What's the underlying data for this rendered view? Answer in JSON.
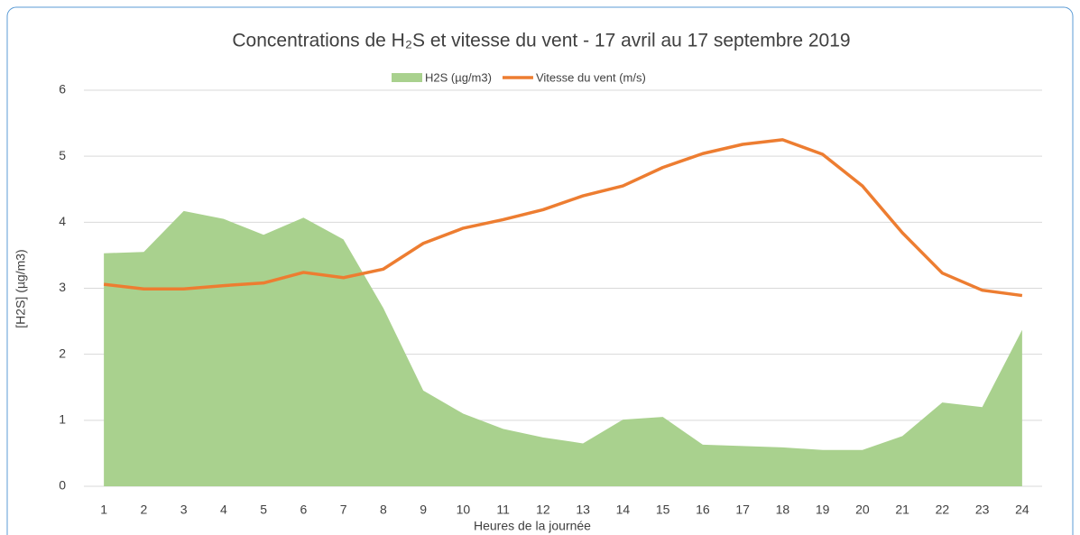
{
  "chart_data": {
    "type": "combo",
    "title": "Concentrations de H₂S et vitesse du vent - 17 avril au 17 septembre 2019",
    "x_label": "Heures de la journée",
    "y_label": "[H2S] (µg/m3)",
    "categories": [
      "1",
      "2",
      "3",
      "4",
      "5",
      "6",
      "7",
      "8",
      "9",
      "10",
      "11",
      "12",
      "13",
      "14",
      "15",
      "16",
      "17",
      "18",
      "19",
      "20",
      "21",
      "22",
      "23",
      "24"
    ],
    "series": [
      {
        "name": "H2S (µg/m3)",
        "type": "area",
        "color": "#a9d18e",
        "values": [
          3.53,
          3.55,
          4.17,
          4.05,
          3.81,
          4.07,
          3.74,
          2.7,
          1.45,
          1.1,
          0.87,
          0.74,
          0.65,
          1.01,
          1.05,
          0.63,
          0.61,
          0.59,
          0.55,
          0.55,
          0.76,
          1.27,
          1.2,
          2.37
        ]
      },
      {
        "name": "Vitesse du vent (m/s)",
        "type": "line",
        "color": "#ed7d31",
        "values": [
          3.06,
          2.99,
          2.99,
          3.04,
          3.08,
          3.24,
          3.16,
          3.29,
          3.68,
          3.91,
          4.04,
          4.19,
          4.4,
          4.55,
          4.83,
          5.04,
          5.18,
          5.25,
          5.03,
          4.55,
          3.84,
          3.23,
          2.97,
          2.89
        ]
      }
    ],
    "ylim": [
      0,
      6
    ],
    "yticks": [
      0,
      1,
      2,
      3,
      4,
      5,
      6
    ],
    "grid": true,
    "legend": "top"
  }
}
